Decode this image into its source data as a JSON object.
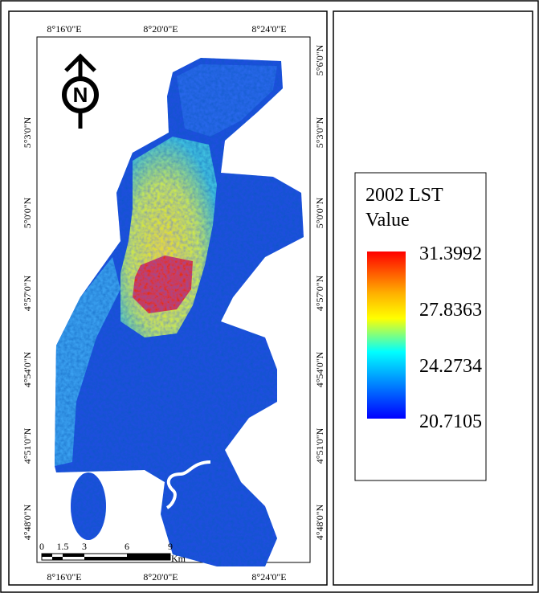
{
  "map": {
    "x_labels_top": [
      "8°16'0\"E",
      "8°20'0\"E",
      "8°24'0\"E"
    ],
    "x_labels_bottom": [
      "8°16'0\"E",
      "8°20'0\"E",
      "8°24'0\"E"
    ],
    "y_labels_left": [
      "5°3'0\"N",
      "5°0'0\"N",
      "4°57'0\"N",
      "4°54'0\"N",
      "4°51'0\"N",
      "4°48'0\"N"
    ],
    "y_labels_right": [
      "5°6'0\"N",
      "5°3'0\"N",
      "5°0'0\"N",
      "4°57'0\"N",
      "4°54'0\"N",
      "4°51'0\"N",
      "4°48'0\"N"
    ],
    "north": "N",
    "scale_bar": {
      "labels": [
        "0",
        "1.5",
        "3",
        "6",
        "9"
      ],
      "unit": "Km"
    },
    "legend": {
      "title_lines": [
        "2002 LST",
        "Value"
      ],
      "labels": [
        "31.3992",
        "27.8363",
        "24.2734",
        "20.7105"
      ]
    }
  }
}
